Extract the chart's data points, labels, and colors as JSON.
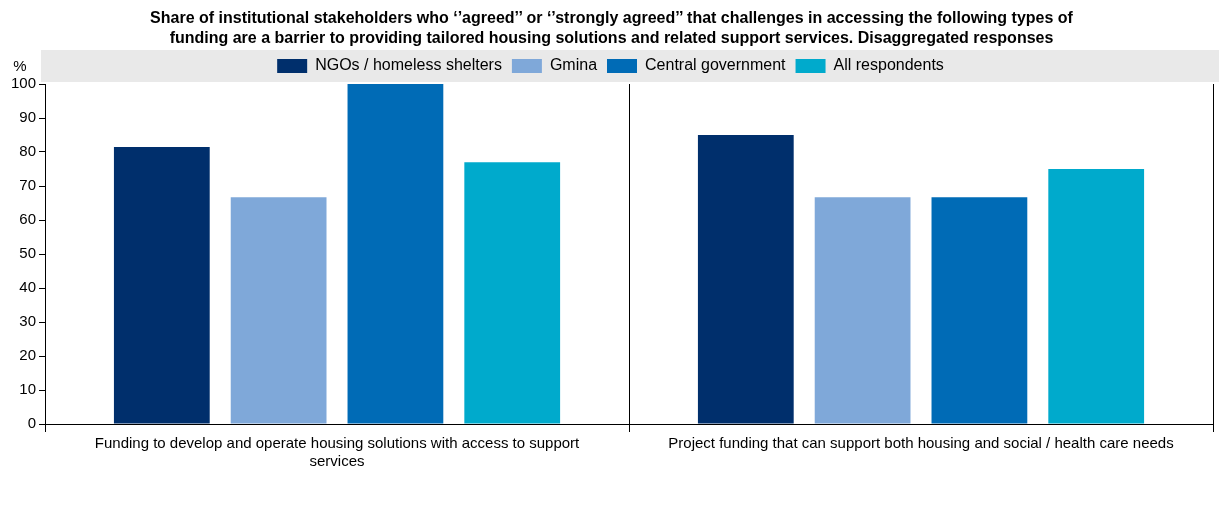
{
  "chart_data": {
    "type": "bar",
    "title": "Share of institutional stakeholders who ‘’agreed’’ or ‘’strongly agreed’’ that challenges in accessing the following types of funding are a barrier to providing tailored housing solutions and related support services. Disaggregated responses",
    "ylabel": "%",
    "categories": [
      "Funding to develop and operate housing solutions with access to support services",
      "Project funding that can support both housing and social / health care needs"
    ],
    "series": [
      {
        "name": "NGOs / homeless shelters",
        "color": "#002f6c",
        "values": [
          81.5,
          85
        ]
      },
      {
        "name": "Gmina",
        "color": "#7fa8d9",
        "values": [
          66.7,
          66.7
        ]
      },
      {
        "name": "Central government",
        "color": "#006bb6",
        "values": [
          100,
          66.7
        ]
      },
      {
        "name": "All respondents",
        "color": "#00aacc",
        "values": [
          77,
          75
        ]
      }
    ],
    "ylim": [
      0,
      100
    ],
    "yticks": [
      0,
      10,
      20,
      30,
      40,
      50,
      60,
      70,
      80,
      90,
      100
    ],
    "grid": false,
    "legend": "top"
  }
}
